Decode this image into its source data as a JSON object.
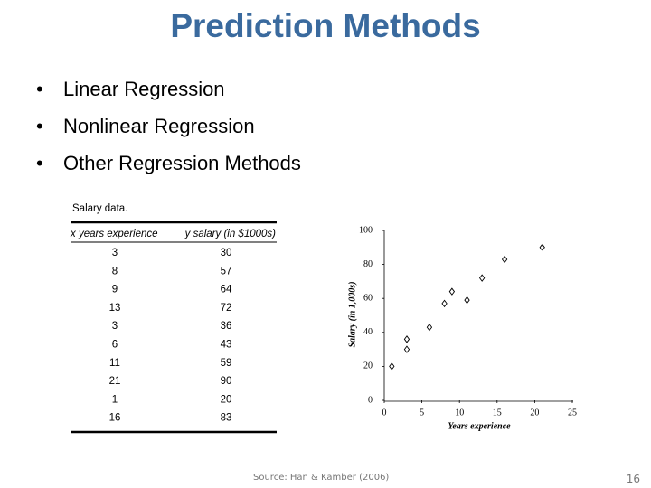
{
  "slide": {
    "title": "Prediction Methods",
    "bullets": [
      "Linear Regression",
      "Nonlinear Regression",
      "Other Regression Methods"
    ],
    "source": "Source: Han & Kamber (2006)",
    "page_number": "16"
  },
  "table": {
    "caption": "Salary data.",
    "headers": [
      "x years experience",
      "y salary (in $1000s)"
    ],
    "rows": [
      [
        3,
        30
      ],
      [
        8,
        57
      ],
      [
        9,
        64
      ],
      [
        13,
        72
      ],
      [
        3,
        36
      ],
      [
        6,
        43
      ],
      [
        11,
        59
      ],
      [
        21,
        90
      ],
      [
        1,
        20
      ],
      [
        16,
        83
      ]
    ]
  },
  "chart_data": {
    "type": "scatter",
    "x_label": "Years experience",
    "y_label": "Salary (in 1,000s)",
    "x": [
      3,
      8,
      9,
      13,
      3,
      6,
      11,
      21,
      1,
      16
    ],
    "values": [
      30,
      57,
      64,
      72,
      36,
      43,
      59,
      90,
      20,
      83
    ],
    "color": "#000000",
    "xlim": [
      0,
      25
    ],
    "xticks": [
      0,
      5,
      10,
      15,
      20,
      25
    ],
    "ylim": [
      0,
      100
    ],
    "yticks": [
      0,
      20,
      40,
      60,
      80,
      100
    ]
  }
}
